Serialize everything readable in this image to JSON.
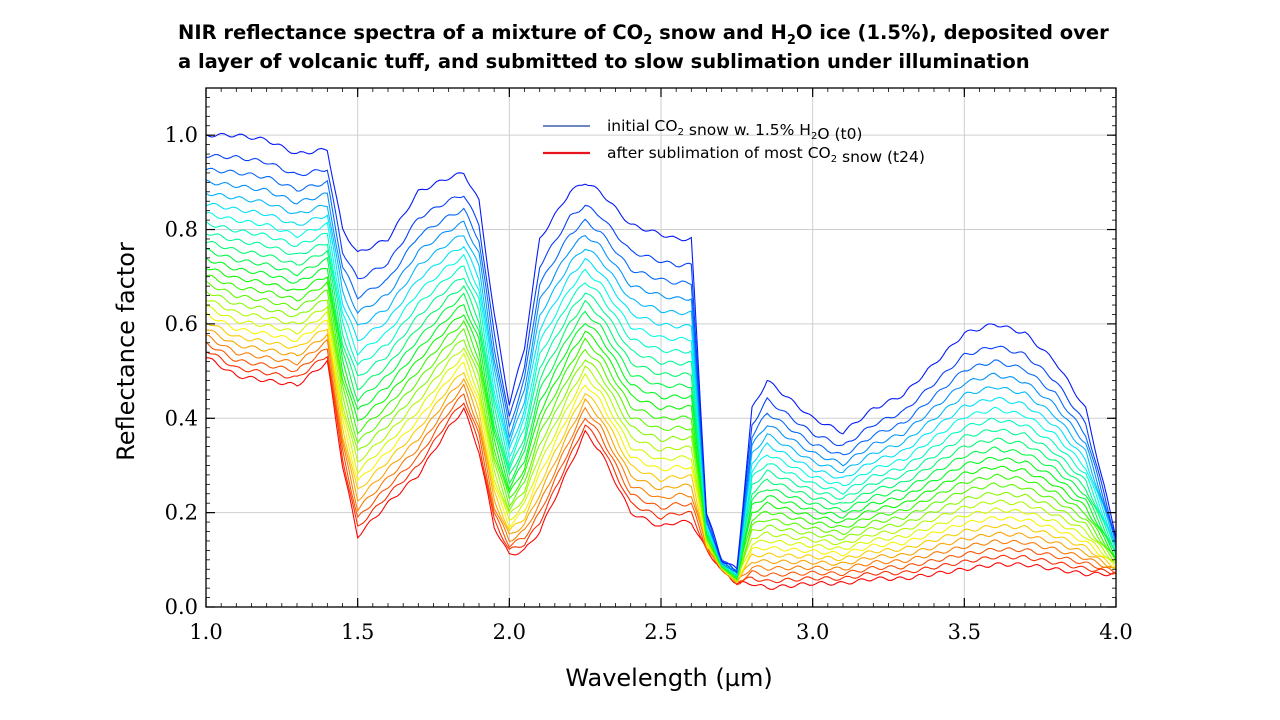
{
  "title": {
    "line1_a": "NIR reflectance spectra of a mixture of CO",
    "line1_sub1": "2",
    "line1_b": " snow and H",
    "line1_sub2": "2",
    "line1_c": "O ice (1.5%), deposited over",
    "line2": "a layer of volcanic tuff, and submitted to slow sublimation under illumination"
  },
  "legend": [
    {
      "pre": "initial CO",
      "sub": "2",
      "mid": " snow w. 1.5% H",
      "sub2": "2",
      "post": "O (t0)",
      "color": "#3f5fae"
    },
    {
      "pre": "after sublimation of most CO",
      "sub": "2",
      "mid": " snow (t24)",
      "sub2": "",
      "post": "",
      "color": "#e8141c"
    }
  ],
  "chart_data": {
    "type": "line",
    "xlabel": "Wavelength (µm)",
    "ylabel": "Reflectance factor",
    "xlim": [
      1.0,
      4.0
    ],
    "ylim": [
      0.0,
      1.1
    ],
    "xticks": [
      "1.0",
      "1.5",
      "2.0",
      "2.5",
      "3.0",
      "3.5",
      "4.0"
    ],
    "yticks": [
      "0.0",
      "0.2",
      "0.4",
      "0.6",
      "0.8",
      "1.0"
    ],
    "grid": true,
    "legend_position": "top-right",
    "series_count": 25,
    "first_spectrum_t0": {
      "x": [
        1.0,
        1.1,
        1.2,
        1.3,
        1.4,
        1.45,
        1.5,
        1.6,
        1.7,
        1.8,
        1.85,
        1.9,
        1.95,
        2.0,
        2.05,
        2.1,
        2.2,
        2.25,
        2.3,
        2.4,
        2.5,
        2.55,
        2.6,
        2.65,
        2.7,
        2.75,
        2.8,
        2.85,
        3.0,
        3.1,
        3.2,
        3.3,
        3.5,
        3.6,
        3.7,
        3.8,
        3.9,
        4.0
      ],
      "y": [
        1.0,
        1.0,
        0.99,
        0.96,
        0.97,
        0.8,
        0.75,
        0.78,
        0.88,
        0.91,
        0.92,
        0.86,
        0.62,
        0.43,
        0.55,
        0.78,
        0.88,
        0.9,
        0.88,
        0.81,
        0.79,
        0.78,
        0.78,
        0.2,
        0.1,
        0.08,
        0.42,
        0.48,
        0.4,
        0.37,
        0.42,
        0.45,
        0.58,
        0.6,
        0.58,
        0.52,
        0.42,
        0.15
      ]
    },
    "last_spectrum_t24": {
      "x": [
        1.0,
        1.1,
        1.2,
        1.3,
        1.4,
        1.45,
        1.5,
        1.6,
        1.7,
        1.8,
        1.85,
        1.9,
        1.95,
        2.0,
        2.05,
        2.1,
        2.2,
        2.25,
        2.3,
        2.4,
        2.5,
        2.55,
        2.6,
        2.65,
        2.7,
        2.75,
        2.8,
        2.85,
        3.0,
        3.1,
        3.2,
        3.3,
        3.5,
        3.6,
        3.7,
        3.8,
        3.9,
        4.0
      ],
      "y": [
        0.53,
        0.49,
        0.48,
        0.47,
        0.52,
        0.3,
        0.15,
        0.22,
        0.28,
        0.38,
        0.42,
        0.33,
        0.17,
        0.11,
        0.12,
        0.16,
        0.3,
        0.37,
        0.33,
        0.2,
        0.17,
        0.18,
        0.18,
        0.12,
        0.08,
        0.05,
        0.05,
        0.04,
        0.05,
        0.05,
        0.06,
        0.06,
        0.08,
        0.09,
        0.09,
        0.08,
        0.07,
        0.07
      ]
    }
  }
}
